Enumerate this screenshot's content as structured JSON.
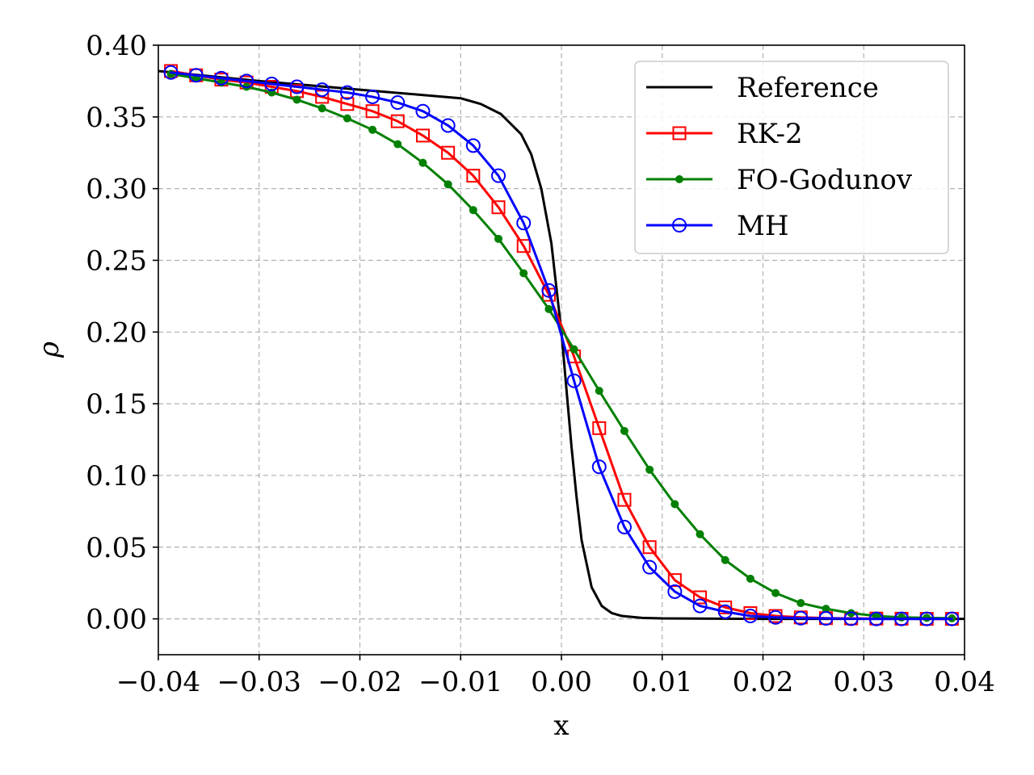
{
  "chart_data": {
    "type": "line",
    "title": "",
    "xlabel": "x",
    "ylabel": "ρ",
    "xlim": [
      -0.04,
      0.04
    ],
    "ylim": [
      -0.025,
      0.4
    ],
    "xticks": [
      -0.04,
      -0.03,
      -0.02,
      -0.01,
      0.0,
      0.01,
      0.02,
      0.03,
      0.04
    ],
    "xtick_labels": [
      "−0.04",
      "−0.03",
      "−0.02",
      "−0.01",
      "0.00",
      "0.01",
      "0.02",
      "0.03",
      "0.04"
    ],
    "yticks": [
      0.0,
      0.05,
      0.1,
      0.15,
      0.2,
      0.25,
      0.3,
      0.35,
      0.4
    ],
    "ytick_labels": [
      "0.00",
      "0.05",
      "0.10",
      "0.15",
      "0.20",
      "0.25",
      "0.30",
      "0.35",
      "0.40"
    ],
    "grid": true,
    "legend_position": "top-right",
    "series": [
      {
        "name": "Reference",
        "color": "#000000",
        "marker": "none",
        "x": [
          -0.04,
          -0.03,
          -0.02,
          -0.01,
          -0.008,
          -0.006,
          -0.004,
          -0.003,
          -0.002,
          -0.001,
          0.0,
          0.0005,
          0.001,
          0.0015,
          0.002,
          0.003,
          0.004,
          0.005,
          0.006,
          0.008,
          0.01,
          0.02,
          0.04
        ],
        "y": [
          0.382,
          0.375,
          0.369,
          0.363,
          0.359,
          0.352,
          0.338,
          0.324,
          0.3,
          0.262,
          0.2,
          0.16,
          0.12,
          0.085,
          0.055,
          0.022,
          0.009,
          0.004,
          0.002,
          0.0007,
          0.0003,
          0.0,
          0.0
        ]
      },
      {
        "name": "RK-2",
        "color": "#ff0000",
        "marker": "square",
        "x": [
          -0.03875,
          -0.03625,
          -0.03375,
          -0.03125,
          -0.02875,
          -0.02625,
          -0.02375,
          -0.02125,
          -0.01875,
          -0.01625,
          -0.01375,
          -0.01125,
          -0.00875,
          -0.00625,
          -0.00375,
          -0.00125,
          0.00125,
          0.00375,
          0.00625,
          0.00875,
          0.01125,
          0.01375,
          0.01625,
          0.01875,
          0.02125,
          0.02375,
          0.02625,
          0.02875,
          0.03125,
          0.03375,
          0.03625,
          0.03875
        ],
        "y": [
          0.382,
          0.379,
          0.376,
          0.374,
          0.371,
          0.368,
          0.364,
          0.359,
          0.354,
          0.347,
          0.337,
          0.325,
          0.309,
          0.287,
          0.26,
          0.226,
          0.183,
          0.133,
          0.083,
          0.05,
          0.027,
          0.015,
          0.008,
          0.004,
          0.002,
          0.001,
          0.0005,
          0.0003,
          0.0002,
          0.0001,
          0.0,
          0.0
        ]
      },
      {
        "name": "FO-Godunov",
        "color": "#008000",
        "marker": "dot",
        "x": [
          -0.03875,
          -0.03625,
          -0.03375,
          -0.03125,
          -0.02875,
          -0.02625,
          -0.02375,
          -0.02125,
          -0.01875,
          -0.01625,
          -0.01375,
          -0.01125,
          -0.00875,
          -0.00625,
          -0.00375,
          -0.00125,
          0.00125,
          0.00375,
          0.00625,
          0.00875,
          0.01125,
          0.01375,
          0.01625,
          0.01875,
          0.02125,
          0.02375,
          0.02625,
          0.02875,
          0.03125,
          0.03375,
          0.03625,
          0.03875
        ],
        "y": [
          0.38,
          0.377,
          0.374,
          0.371,
          0.367,
          0.362,
          0.356,
          0.349,
          0.341,
          0.331,
          0.318,
          0.303,
          0.285,
          0.265,
          0.241,
          0.216,
          0.188,
          0.159,
          0.131,
          0.104,
          0.08,
          0.059,
          0.041,
          0.028,
          0.018,
          0.011,
          0.007,
          0.004,
          0.002,
          0.001,
          0.0007,
          0.0004
        ]
      },
      {
        "name": "MH",
        "color": "#0000ff",
        "marker": "circle",
        "x": [
          -0.03875,
          -0.03625,
          -0.03375,
          -0.03125,
          -0.02875,
          -0.02625,
          -0.02375,
          -0.02125,
          -0.01875,
          -0.01625,
          -0.01375,
          -0.01125,
          -0.00875,
          -0.00625,
          -0.00375,
          -0.00125,
          0.00125,
          0.00375,
          0.00625,
          0.00875,
          0.01125,
          0.01375,
          0.01625,
          0.01875,
          0.02125,
          0.02375,
          0.02625,
          0.02875,
          0.03125,
          0.03375,
          0.03625,
          0.03875
        ],
        "y": [
          0.381,
          0.379,
          0.377,
          0.375,
          0.373,
          0.371,
          0.369,
          0.367,
          0.364,
          0.36,
          0.354,
          0.344,
          0.33,
          0.309,
          0.276,
          0.229,
          0.166,
          0.106,
          0.064,
          0.036,
          0.019,
          0.009,
          0.005,
          0.002,
          0.001,
          0.0005,
          0.0003,
          0.0001,
          0.0,
          0.0,
          0.0,
          0.0
        ]
      }
    ]
  }
}
